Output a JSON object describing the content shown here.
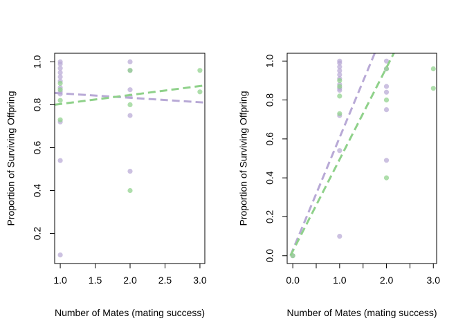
{
  "colors": {
    "purple": "#b8a9d6",
    "green": "#8fd18a",
    "axis": "#000000"
  },
  "chart_data": [
    {
      "type": "scatter",
      "xlabel": "Number of Mates (mating success)",
      "ylabel": "Proportion of Surviving Offpring",
      "xlim": [
        0.92,
        3.07
      ],
      "ylim": [
        0.06,
        1.04
      ],
      "xticks": [
        1.0,
        1.5,
        2.0,
        2.5,
        3.0
      ],
      "xtick_labels": [
        "1.0",
        "1.5",
        "2.0",
        "2.5",
        "3.0"
      ],
      "yticks": [
        0.2,
        0.4,
        0.6,
        0.8,
        1.0
      ],
      "ytick_labels": [
        "0.2",
        "0.4",
        "0.6",
        "0.8",
        "1.0"
      ],
      "series": [
        {
          "color": "purple",
          "points": [
            [
              1,
              1.0
            ],
            [
              1,
              0.99
            ],
            [
              1,
              0.97
            ],
            [
              1,
              0.95
            ],
            [
              1,
              0.93
            ],
            [
              1,
              0.91
            ],
            [
              1,
              0.88
            ],
            [
              1,
              0.86
            ],
            [
              1,
              0.85
            ],
            [
              1,
              0.72
            ],
            [
              1,
              0.54
            ],
            [
              1,
              0.1
            ],
            [
              2,
              1.0
            ],
            [
              2,
              0.96
            ],
            [
              2,
              0.87
            ],
            [
              2,
              0.84
            ],
            [
              2,
              0.75
            ],
            [
              2,
              0.49
            ]
          ],
          "fit": {
            "from": [
              0.92,
              0.855
            ],
            "to": [
              3.07,
              0.81
            ]
          }
        },
        {
          "color": "green",
          "points": [
            [
              1,
              0.9
            ],
            [
              1,
              0.87
            ],
            [
              1,
              0.82
            ],
            [
              1,
              0.73
            ],
            [
              2,
              0.96
            ],
            [
              2,
              0.8
            ],
            [
              2,
              0.4
            ],
            [
              3,
              0.96
            ],
            [
              3,
              0.86
            ]
          ],
          "fit": {
            "from": [
              0.92,
              0.8
            ],
            "to": [
              3.07,
              0.89
            ]
          }
        }
      ]
    },
    {
      "type": "scatter",
      "xlabel": "Number of Mates (mating success)",
      "ylabel": "Proportion of Surviving Offpring",
      "xlim": [
        -0.12,
        3.07
      ],
      "ylim": [
        -0.04,
        1.04
      ],
      "xticks": [
        0.0,
        0.5,
        1.0,
        1.5,
        2.0,
        2.5,
        3.0
      ],
      "xtick_labels": [
        "0.0",
        "",
        "1.0",
        "",
        "2.0",
        "",
        "3.0"
      ],
      "yticks": [
        0.0,
        0.2,
        0.4,
        0.6,
        0.8,
        1.0
      ],
      "ytick_labels": [
        "0.0",
        "0.2",
        "0.4",
        "0.6",
        "0.8",
        "1.0"
      ],
      "series": [
        {
          "color": "purple",
          "points": [
            [
              0,
              0.0
            ],
            [
              1,
              1.0
            ],
            [
              1,
              0.99
            ],
            [
              1,
              0.97
            ],
            [
              1,
              0.95
            ],
            [
              1,
              0.93
            ],
            [
              1,
              0.91
            ],
            [
              1,
              0.88
            ],
            [
              1,
              0.86
            ],
            [
              1,
              0.85
            ],
            [
              1,
              0.72
            ],
            [
              1,
              0.54
            ],
            [
              1,
              0.1
            ],
            [
              2,
              1.0
            ],
            [
              2,
              0.96
            ],
            [
              2,
              0.87
            ],
            [
              2,
              0.84
            ],
            [
              2,
              0.75
            ],
            [
              2,
              0.49
            ]
          ],
          "fit": {
            "from": [
              -0.05,
              0.0
            ],
            "to": [
              1.8,
              1.07
            ]
          }
        },
        {
          "color": "green",
          "points": [
            [
              0,
              0.0
            ],
            [
              1,
              0.9
            ],
            [
              1,
              0.87
            ],
            [
              1,
              0.82
            ],
            [
              1,
              0.73
            ],
            [
              2,
              0.96
            ],
            [
              2,
              0.8
            ],
            [
              2,
              0.4
            ],
            [
              3,
              0.96
            ],
            [
              3,
              0.86
            ]
          ],
          "fit": {
            "from": [
              -0.05,
              0.0
            ],
            "to": [
              2.22,
              1.07
            ]
          }
        }
      ]
    }
  ]
}
